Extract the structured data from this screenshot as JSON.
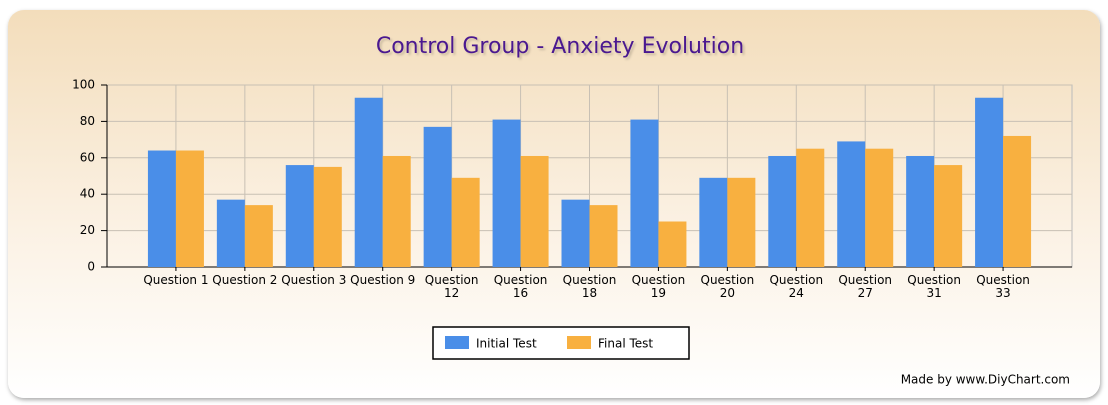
{
  "chart_data": {
    "type": "bar",
    "title": "Control Group - Anxiety Evolution",
    "categories": [
      "Question 1",
      "Question 2",
      "Question 3",
      "Question 9",
      "Question 12",
      "Question 16",
      "Question 18",
      "Question 19",
      "Question 20",
      "Question 24",
      "Question 27",
      "Question 31",
      "Question 33"
    ],
    "series": [
      {
        "name": "Initial Test",
        "color": "#4a8ee8",
        "values": [
          64,
          37,
          56,
          93,
          77,
          81,
          37,
          81,
          49,
          61,
          69,
          61,
          93
        ]
      },
      {
        "name": "Final Test",
        "color": "#f8b040",
        "values": [
          64,
          34,
          55,
          61,
          49,
          61,
          34,
          25,
          49,
          65,
          65,
          56,
          72
        ]
      }
    ],
    "ylim": [
      0,
      100
    ],
    "yticks": [
      0,
      20,
      40,
      60,
      80,
      100
    ],
    "grid": true,
    "legend": "bottom",
    "credit": "Made by www.DiyChart.com"
  }
}
